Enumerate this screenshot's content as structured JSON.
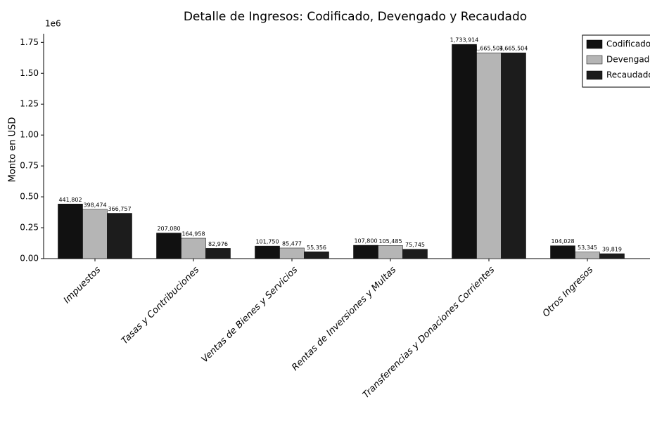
{
  "chart_data": {
    "type": "bar",
    "title": "Detalle de Ingresos: Codificado, Devengado y Recaudado",
    "ylabel": "Monto en USD",
    "y_offset_label": "1e6",
    "categories": [
      "Impuestos",
      "Tasas y Contribuciones",
      "Ventas de Bienes y Servicios",
      "Rentas de Inversiones y Multas",
      "Transferencias y Donaciones Corrientes",
      "Otros Ingresos"
    ],
    "series": [
      {
        "name": "Codificado",
        "color": "#111111",
        "values": [
          0.441802,
          0.20708,
          0.10175,
          0.1078,
          1.733914,
          0.104028
        ],
        "value_labels": [
          "441,802",
          "207,080",
          "101,750",
          "107,800",
          "1,733,914",
          "104,028"
        ]
      },
      {
        "name": "Devengado",
        "color": "#b5b5b5",
        "values": [
          0.398474,
          0.164958,
          0.085477,
          0.105485,
          1.665504,
          0.053345
        ],
        "value_labels": [
          "398,474",
          "164,958",
          "85,477",
          "105,485",
          "1,665,504",
          "53,345"
        ]
      },
      {
        "name": "Recaudado",
        "color": "#1c1c1c",
        "values": [
          0.366757,
          0.082976,
          0.055356,
          0.075745,
          1.665504,
          0.039819
        ],
        "value_labels": [
          "366,757",
          "82,976",
          "55,356",
          "75,745",
          "1,665,504",
          "39,819"
        ]
      }
    ],
    "ylim": [
      0,
      1.82
    ],
    "yticks": [
      {
        "value": 0,
        "label": "0.00"
      },
      0.25,
      {
        "value": 0.5,
        "label": "0.50"
      },
      0.75,
      {
        "value": 1,
        "label": "1.00"
      },
      1.25,
      {
        "value": 1.5,
        "label": "1.50"
      },
      1.75
    ],
    "legend": "upper right"
  }
}
